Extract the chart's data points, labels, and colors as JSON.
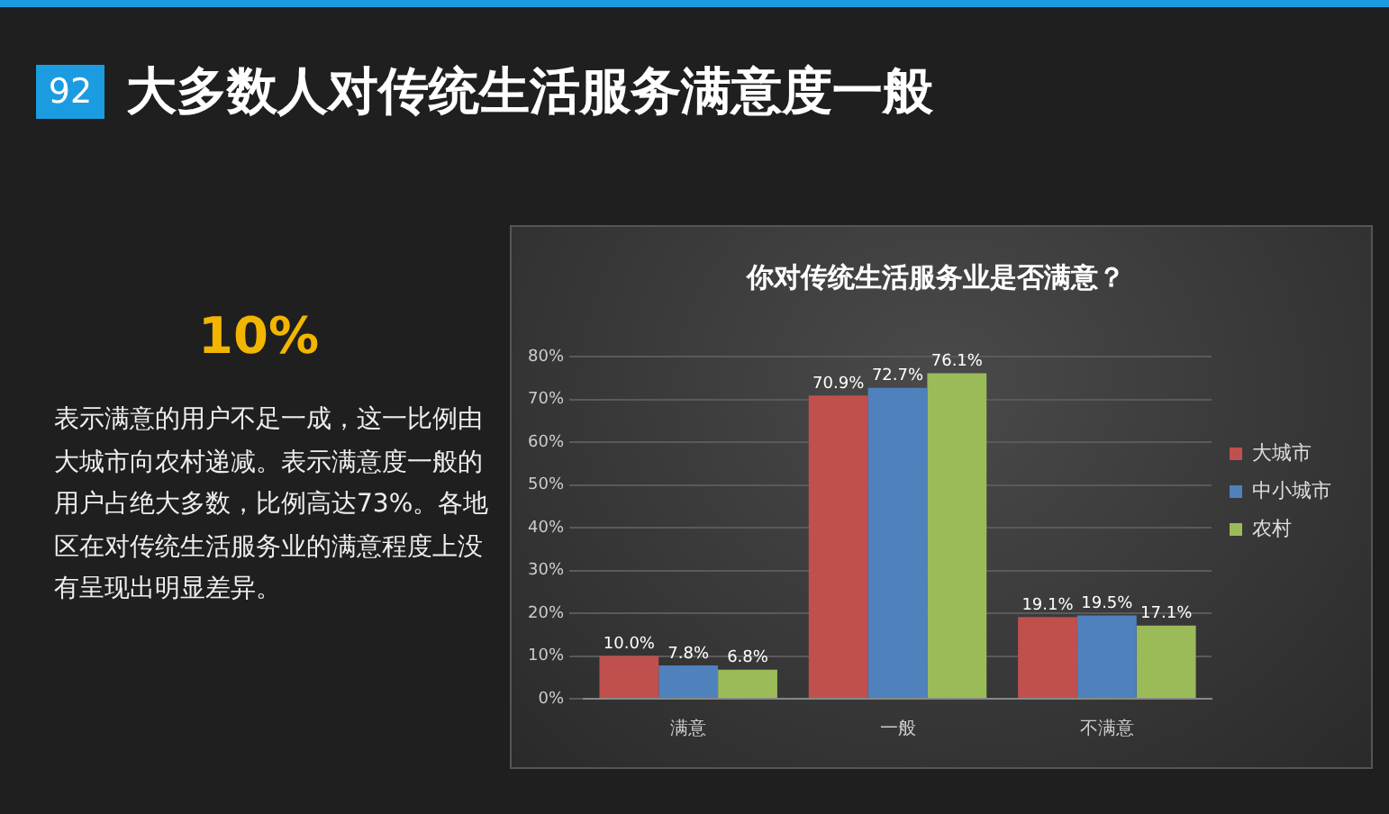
{
  "chart_data": {
    "type": "bar",
    "title": "你对传统生活服务业是否满意？",
    "annotations": [
      "92",
      "大多数人对传统生活服务满意度一般",
      "10%",
      "表示满意的用户不足一成，这一比例由大城市向农村递减。表示满意度一般的用户占绝大多数，比例高达73%。各地区在对传统生活服务业的满意程度上没有呈现出明显差异。"
    ],
    "categories": [
      "满意",
      "一般",
      "不满意"
    ],
    "series": [
      {
        "name": "大城市",
        "color": "#c0504d",
        "values": [
          10.0,
          70.9,
          19.1
        ],
        "value_labels": [
          "10.0%",
          "70.9%",
          "19.1%"
        ]
      },
      {
        "name": "中小城市",
        "color": "#4f81bd",
        "values": [
          7.8,
          72.7,
          19.5
        ],
        "value_labels": [
          "7.8%",
          "72.7%",
          "19.5%"
        ]
      },
      {
        "name": "农村",
        "color": "#9bbb59",
        "values": [
          6.8,
          76.1,
          17.1
        ],
        "value_labels": [
          "6.8%",
          "76.1%",
          "17.1%"
        ]
      }
    ],
    "ylim": [
      0,
      80
    ],
    "yticks": [
      {
        "value": 0,
        "label": "0%"
      },
      {
        "value": 10,
        "label": "10%"
      },
      {
        "value": 20,
        "label": "20%"
      },
      {
        "value": 30,
        "label": "30%"
      },
      {
        "value": 40,
        "label": "40%"
      },
      {
        "value": 50,
        "label": "50%"
      },
      {
        "value": 60,
        "label": "60%"
      },
      {
        "value": 70,
        "label": "70%"
      },
      {
        "value": 80,
        "label": "80%"
      }
    ],
    "grid": "y",
    "legend": "right"
  }
}
